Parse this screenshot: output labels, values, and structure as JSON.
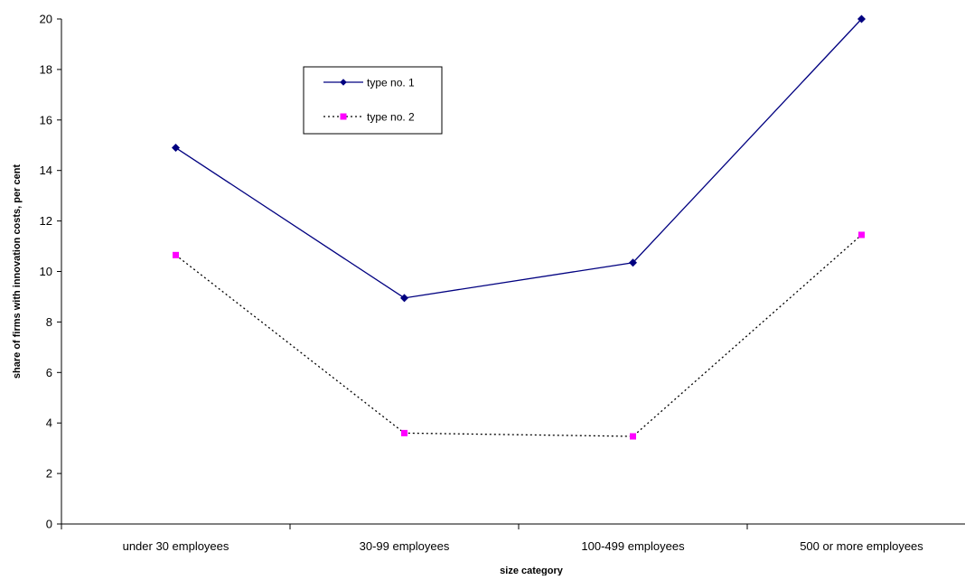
{
  "chart_data": {
    "type": "line",
    "title": "",
    "xlabel": "size category",
    "ylabel": "share of firms with innovation costs, per cent",
    "categories": [
      "under 30 employees",
      "30-99 employees",
      "100-499 employees",
      "500 or more employees"
    ],
    "ylim": [
      0,
      20
    ],
    "yticks": [
      0,
      2,
      4,
      6,
      8,
      10,
      12,
      14,
      16,
      18,
      20
    ],
    "ytick_labels": [
      "0",
      "2",
      "4",
      "6",
      "8",
      "10",
      "12",
      "14",
      "16",
      "18",
      "20"
    ],
    "grid": false,
    "legend_position": "top-left",
    "series": [
      {
        "name": "type no. 1",
        "values": [
          14.9,
          8.95,
          10.35,
          20.0
        ],
        "color": "#000080",
        "line_style": "solid",
        "marker": "diamond"
      },
      {
        "name": "type no. 2",
        "values": [
          10.65,
          3.6,
          3.47,
          11.45
        ],
        "color": "#FF00FF",
        "line_color": "#000000",
        "line_style": "dotted",
        "marker": "square"
      }
    ]
  }
}
